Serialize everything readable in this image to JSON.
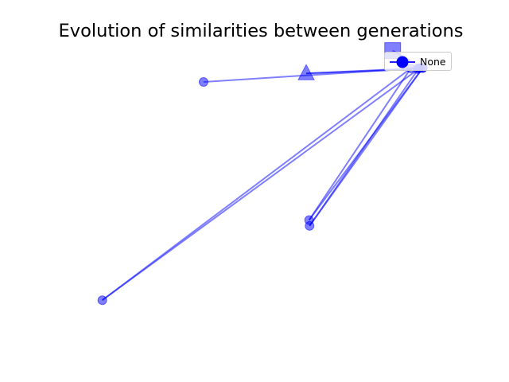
{
  "chart_data": {
    "type": "line",
    "title": "Evolution of similarities between generations",
    "xlabel": "",
    "ylabel": "",
    "axes_visible": false,
    "grid": false,
    "legend": {
      "placement": "top-right",
      "entries": [
        "None"
      ]
    },
    "series": [
      {
        "color": "#0000ff",
        "points": [
          {
            "x": 0.622,
            "y": 0.764,
            "marker": "square"
          },
          {
            "x": 0.685,
            "y": 0.662,
            "marker": "circle"
          },
          {
            "x": 0.674,
            "y": 0.656,
            "marker": "circle"
          },
          {
            "x": 0.441,
            "y": 0.63,
            "marker": "triangle"
          },
          {
            "x": 0.679,
            "y": 0.662,
            "marker": "circle"
          },
          {
            "x": 0.014,
            "y": -0.7,
            "marker": "circle"
          },
          {
            "x": 0.66,
            "y": 0.66,
            "marker": "circle"
          },
          {
            "x": 0.447,
            "y": -0.23,
            "marker": "circle"
          },
          {
            "x": 0.685,
            "y": 0.662,
            "marker": "circle"
          },
          {
            "x": 0.448,
            "y": -0.264,
            "marker": "circle"
          },
          {
            "x": 0.677,
            "y": 0.661,
            "marker": "circle"
          },
          {
            "x": 0.226,
            "y": 0.58,
            "marker": "circle"
          }
        ]
      }
    ],
    "xlim": [
      -0.067,
      0.759
    ],
    "ylim": [
      -0.909,
      0.79
    ]
  },
  "colors": {
    "line": "#0000ff",
    "legend_border": "#cccccc"
  }
}
